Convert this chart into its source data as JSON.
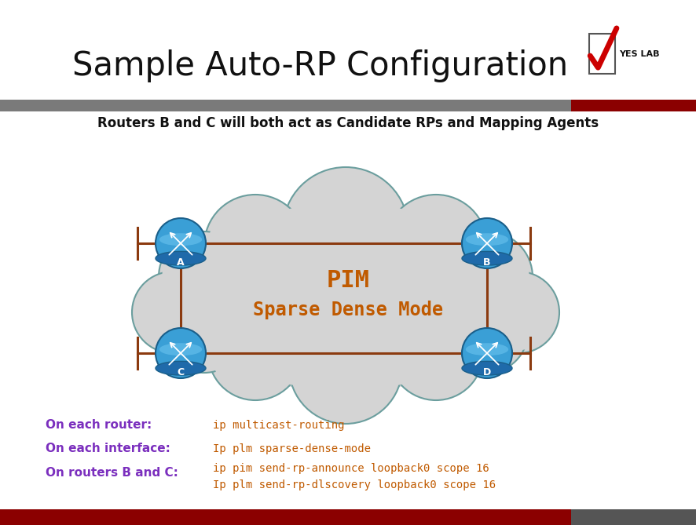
{
  "title": "Sample Auto-RP Configuration",
  "subtitle": "Routers B and C will both act as Candidate RPs and Mapping Agents",
  "bg_color": "#ffffff",
  "header_bar_color1": "#7a7a7a",
  "header_bar_color2": "#8b0000",
  "bottom_bar_color": "#8b0000",
  "bottom_bar_color2": "#555555",
  "cloud_color": "#d4d4d4",
  "cloud_edge_color": "#6b9e9e",
  "link_color": "#8b3a0f",
  "pim_text": "PIM",
  "pim_mode_text": "Sparse Dense Mode",
  "pim_color": "#c05a00",
  "routers": [
    "A",
    "B",
    "C",
    "D"
  ],
  "label_left": [
    "On each router:",
    "On each interface:",
    "On routers B and C:"
  ],
  "label_right_1": "ip multicast-routing",
  "label_right_2": "Ip plm sparse-dense-mode",
  "label_right_3a": "ip pim send-rp-announce loopback0 scope 16",
  "label_right_3b": "Ip plm send-rp-dlscovery loopback0 scope 16",
  "label_color_left": "#7b2fbe",
  "label_color_right": "#c05a00",
  "checkmark_color": "#cc0000",
  "title_fontsize": 30,
  "subtitle_fontsize": 12,
  "link_lw": 2.2,
  "stub": 0.048,
  "tick": 0.02
}
